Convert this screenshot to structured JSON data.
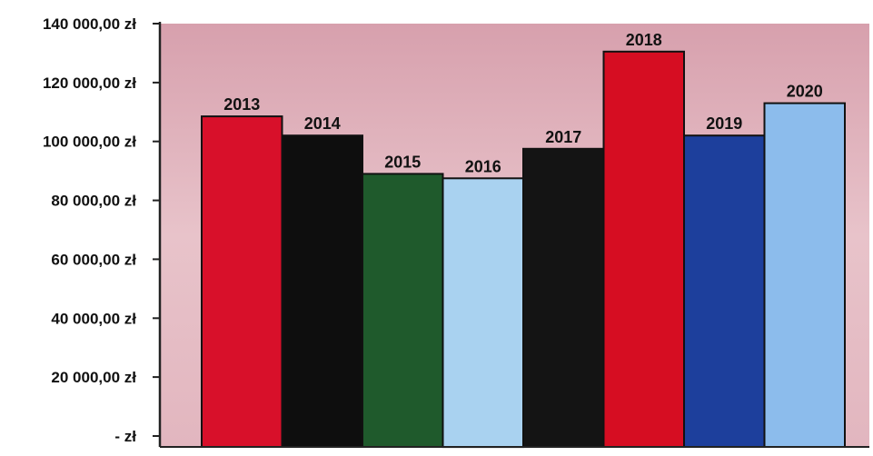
{
  "chart_data": {
    "type": "bar",
    "title": "",
    "xlabel": "",
    "ylabel": "",
    "categories": [
      "2013",
      "2014",
      "2015",
      "2016",
      "2017",
      "2018",
      "2019",
      "2020"
    ],
    "values": [
      108500,
      102000,
      89000,
      87500,
      97500,
      130500,
      102000,
      113000
    ],
    "data_labels": [
      "2013",
      "2014",
      "2015",
      "2016",
      "2017",
      "2018",
      "2019",
      "2020"
    ],
    "bar_colors": [
      "#d8102a",
      "#0e0e0e",
      "#1f5a2c",
      "#a9d2f0",
      "#141414",
      "#d60d22",
      "#1d3f9c",
      "#8cbcec"
    ],
    "ylim": [
      0,
      140000
    ],
    "yticks": [
      0,
      20000,
      40000,
      60000,
      80000,
      100000,
      120000,
      140000
    ],
    "ytick_labels": [
      "- zł",
      "20 000,00 zł",
      "40 000,00 zł",
      "60 000,00 zł",
      "80 000,00 zł",
      "100 000,00 zł",
      "120 000,00 zł",
      "140 000,00 zł"
    ],
    "plot_background": "#e6b8c0",
    "grid": false,
    "legend": "none"
  }
}
